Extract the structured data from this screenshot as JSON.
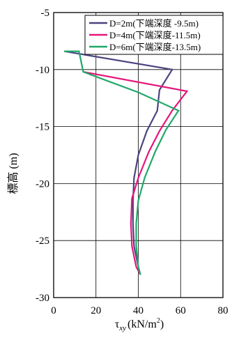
{
  "chart_data": {
    "type": "line",
    "title": "",
    "xlabel_symbol": "τ",
    "xlabel_subscript": "xy",
    "xlabel_unit": "(kN/m",
    "xlabel_unit_sup": "2",
    "xlabel_unit_close": ")",
    "ylabel": "標高 (m)",
    "xlim": [
      0,
      80
    ],
    "ylim": [
      -30,
      -5
    ],
    "x_ticks": [
      0,
      20,
      40,
      60,
      80
    ],
    "x_tick_labels": [
      "0",
      "20",
      "40",
      "60",
      "80"
    ],
    "y_ticks": [
      -5,
      -10,
      -15,
      -20,
      -25,
      -30
    ],
    "y_tick_labels": [
      "-5",
      "-10",
      "-15",
      "-20",
      "-25",
      "-30"
    ],
    "grid": true,
    "legend_position": "top-right",
    "series": [
      {
        "name": "D=2m(下端深度 -9.5m)",
        "color": "#4a4480",
        "points": [
          [
            5,
            -8.4
          ],
          [
            56,
            -10
          ],
          [
            50,
            -11.8
          ],
          [
            49,
            -13.6
          ],
          [
            44,
            -15.4
          ],
          [
            40,
            -17.5
          ],
          [
            38,
            -19.5
          ],
          [
            37.5,
            -21.5
          ],
          [
            37.5,
            -23.5
          ],
          [
            38,
            -25.5
          ],
          [
            40,
            -27.3
          ],
          [
            41,
            -28
          ]
        ]
      },
      {
        "name": "D=4m(下端深度-11.5m)",
        "color": "#e6157a",
        "points": [
          [
            14,
            -10.2
          ],
          [
            63,
            -11.9
          ],
          [
            56,
            -13.6
          ],
          [
            50,
            -15.4
          ],
          [
            45,
            -17.2
          ],
          [
            40,
            -19.5
          ],
          [
            37,
            -21.3
          ],
          [
            36.5,
            -23.5
          ],
          [
            37,
            -25.5
          ],
          [
            39,
            -27.3
          ],
          [
            41,
            -28
          ]
        ]
      },
      {
        "name": "D=6m(下端深度-13.5m)",
        "color": "#1fa86a",
        "points": [
          [
            5,
            -8.4
          ],
          [
            12,
            -8.4
          ],
          [
            14,
            -10.2
          ],
          [
            40,
            -12
          ],
          [
            59,
            -13.6
          ],
          [
            53,
            -15.3
          ],
          [
            48,
            -17.2
          ],
          [
            43,
            -19.5
          ],
          [
            40,
            -21.5
          ],
          [
            39,
            -23.5
          ],
          [
            39,
            -25.5
          ],
          [
            40,
            -27.3
          ],
          [
            41,
            -28
          ]
        ]
      }
    ]
  }
}
